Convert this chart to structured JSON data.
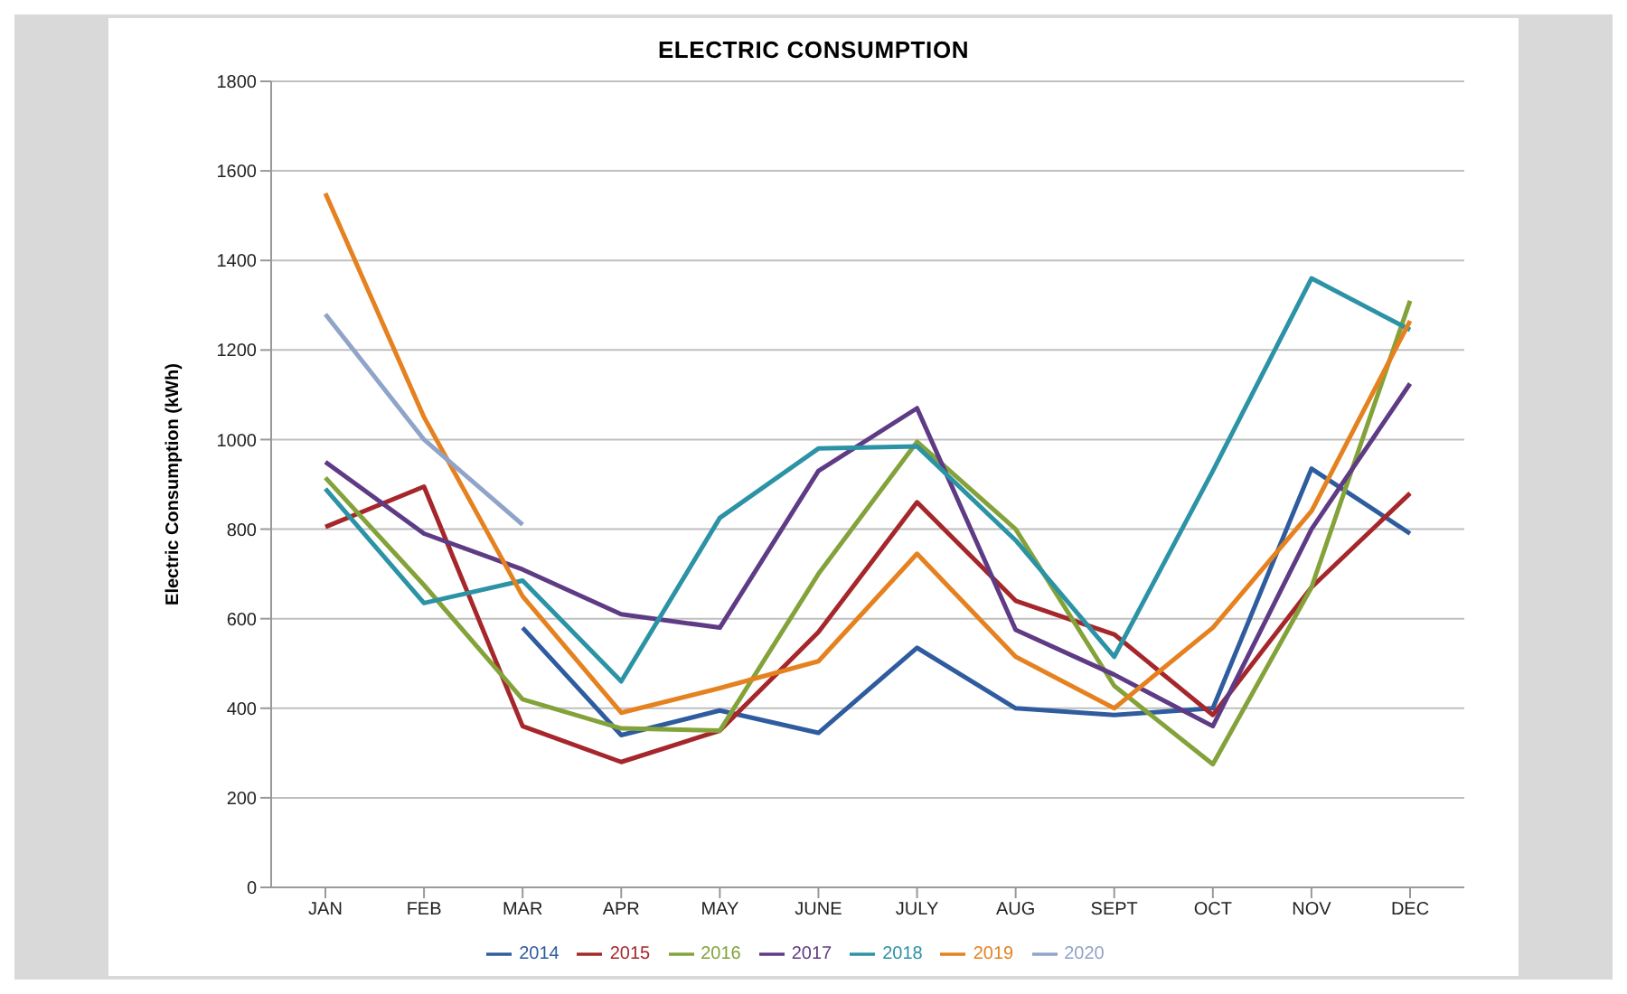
{
  "chart_data": {
    "type": "line",
    "title": "ELECTRIC CONSUMPTION",
    "ylabel": "Electric Consumption (kWh)",
    "categories": [
      "JAN",
      "FEB",
      "MAR",
      "APR",
      "MAY",
      "JUNE",
      "JULY",
      "AUG",
      "SEPT",
      "OCT",
      "NOV",
      "DEC"
    ],
    "series": [
      {
        "name": "2014",
        "color": "#2e5c9e",
        "values": [
          null,
          null,
          580,
          340,
          395,
          345,
          535,
          400,
          385,
          400,
          935,
          790
        ]
      },
      {
        "name": "2015",
        "color": "#a5272b",
        "values": [
          805,
          895,
          360,
          280,
          350,
          570,
          860,
          640,
          565,
          385,
          670,
          880
        ]
      },
      {
        "name": "2016",
        "color": "#84a23a",
        "values": [
          915,
          675,
          420,
          355,
          350,
          700,
          995,
          800,
          450,
          275,
          670,
          1310
        ]
      },
      {
        "name": "2017",
        "color": "#5e3b84",
        "values": [
          950,
          790,
          710,
          610,
          580,
          930,
          1070,
          575,
          475,
          360,
          800,
          1125
        ]
      },
      {
        "name": "2018",
        "color": "#2b93a5",
        "values": [
          890,
          635,
          685,
          460,
          825,
          980,
          985,
          775,
          515,
          930,
          1360,
          1245
        ]
      },
      {
        "name": "2019",
        "color": "#e5811f",
        "values": [
          1550,
          1050,
          650,
          390,
          445,
          505,
          745,
          515,
          400,
          580,
          840,
          1265
        ]
      },
      {
        "name": "2020",
        "color": "#8fa4c8",
        "values": [
          1280,
          1000,
          810,
          null,
          null,
          null,
          null,
          null,
          null,
          null,
          null,
          null
        ]
      }
    ],
    "ylim": [
      0,
      1800
    ],
    "yticks": [
      0,
      200,
      400,
      600,
      800,
      1000,
      1200,
      1400,
      1600,
      1800
    ],
    "grid": "y",
    "legend": "bottom",
    "marker": "none",
    "line_style": "solid"
  }
}
